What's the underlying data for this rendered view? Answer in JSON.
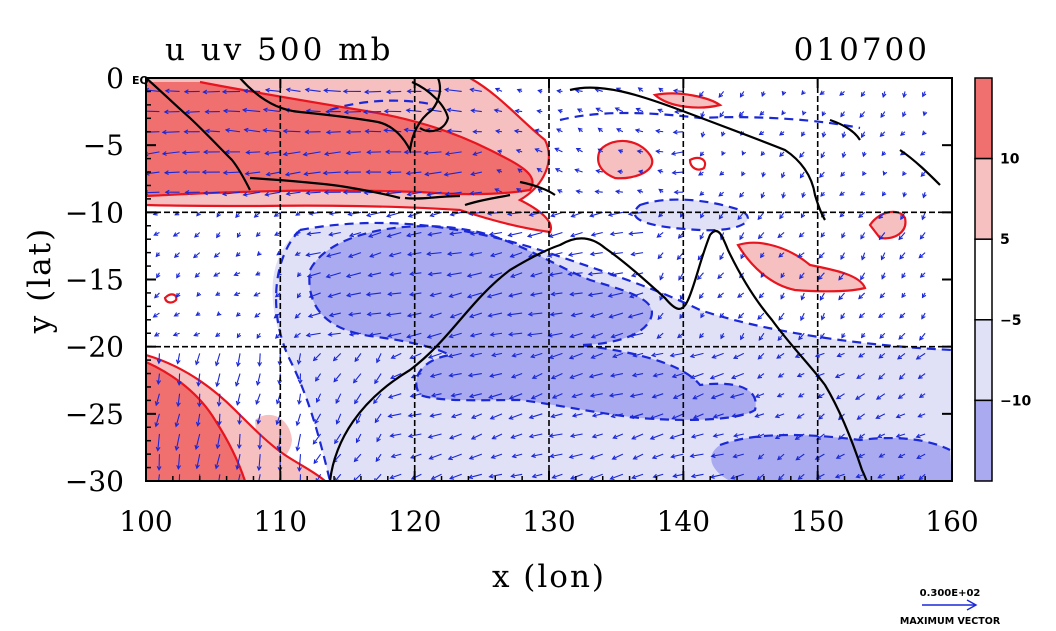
{
  "chart_data": {
    "type": "contour",
    "title": "u uv 500 mb",
    "date_label": "010700",
    "xlabel": "x (lon)",
    "ylabel": "y (lat)",
    "xlim": [
      100,
      160
    ],
    "ylim": [
      -30,
      0
    ],
    "x_ticks": [
      100,
      110,
      120,
      130,
      140,
      150,
      160
    ],
    "x_tick_labels": [
      "100",
      "110",
      "120",
      "130",
      "140",
      "150",
      "160"
    ],
    "y_ticks": [
      0,
      -5,
      -10,
      -15,
      -20,
      -25,
      -30
    ],
    "y_tick_labels": [
      "0",
      "−5",
      "−10",
      "−15",
      "−20",
      "−25",
      "−30"
    ],
    "eq_label": "EQ",
    "grid_lon": [
      110,
      120,
      130,
      140,
      150
    ],
    "grid_lat": [
      -10,
      -20
    ],
    "colorbar": {
      "levels": [
        -10,
        -5,
        5,
        10
      ],
      "labels": [
        "−10",
        "−5",
        "5",
        "10"
      ],
      "colors": [
        "#a9aaf0",
        "#e0e0f7",
        "#ffffff",
        "#f6bfc0",
        "#f07070"
      ]
    },
    "vector_legend": {
      "value_label": "0.300E+02",
      "caption": "MAXIMUM VECTOR",
      "max_value": 30
    },
    "colors": {
      "positive_contour": "#e8141e",
      "negative_contour": "#1a28d8",
      "vector": "#1a28d8",
      "coast": "#000000"
    }
  }
}
